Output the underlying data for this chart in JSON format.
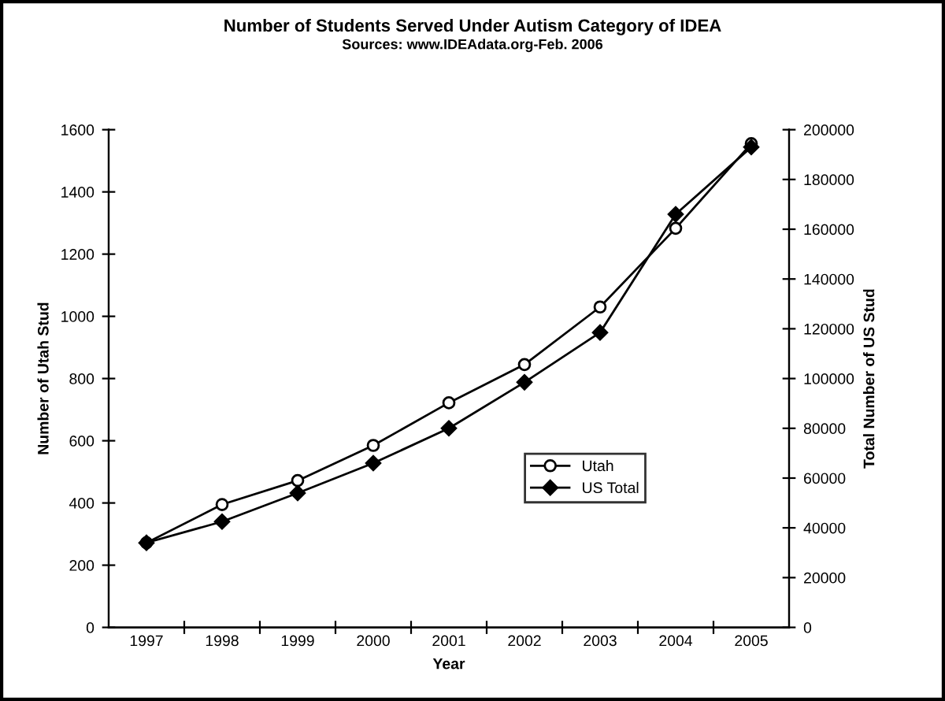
{
  "chart_data": {
    "type": "line",
    "title": "Number of Students Served Under Autism Category of IDEA",
    "subtitle": "Sources: www.IDEAdata.org-Feb. 2006",
    "xlabel": "Year",
    "ylabel": "Number of Utah Stud",
    "y2label": "Total Number of US Stud",
    "categories": [
      "1997",
      "1998",
      "1999",
      "2000",
      "2001",
      "2002",
      "2003",
      "2004",
      "2005"
    ],
    "series": [
      {
        "name": "Utah",
        "color": "#000000",
        "marker": "circle",
        "values": [
          272,
          395,
          472,
          585,
          722,
          845,
          1030,
          1283,
          1555
        ]
      },
      {
        "name": "US Total",
        "color": "#000000",
        "marker": "diamond",
        "axis": "y2",
        "values": [
          34000,
          42500,
          54000,
          66000,
          80000,
          98500,
          118500,
          166000,
          193000
        ]
      }
    ],
    "ylim": [
      0,
      1600
    ],
    "yticks": [
      0,
      200,
      400,
      600,
      800,
      1000,
      1200,
      1400,
      1600
    ],
    "y2lim": [
      0,
      200000
    ],
    "y2ticks": [
      0,
      20000,
      40000,
      60000,
      80000,
      100000,
      120000,
      140000,
      160000,
      180000,
      200000
    ],
    "grid": false,
    "legend": "right",
    "line_style": "solid"
  }
}
